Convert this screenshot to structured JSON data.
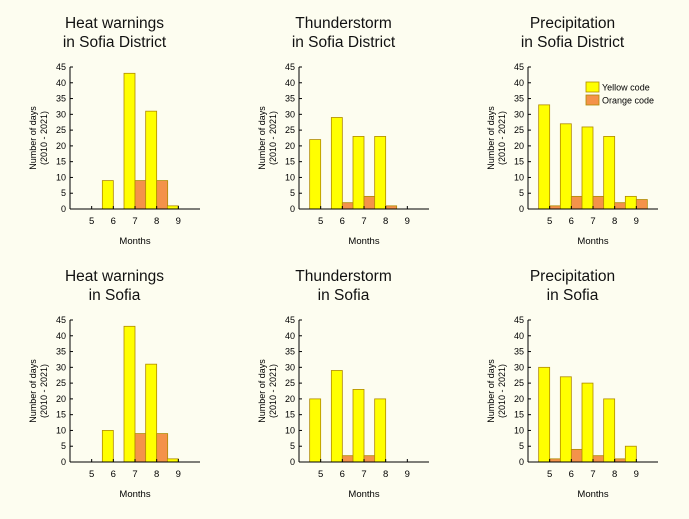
{
  "colors": {
    "yellow": "#ffff00",
    "orange": "#f4924a",
    "outline": "#b08a00",
    "axis": "#000000",
    "background": "#fdfdf0"
  },
  "legend_labels": [
    "Yellow code",
    "Orange code"
  ],
  "chart_data": [
    {
      "type": "bar",
      "title": [
        "Heat warnings",
        "in Sofia District"
      ],
      "xlabel": "Months",
      "ylabel": [
        "Number of days",
        "(2010 - 2021)"
      ],
      "ylim": [
        0,
        45
      ],
      "yticks": [
        0,
        5,
        10,
        15,
        20,
        25,
        30,
        35,
        40,
        45
      ],
      "categories": [
        "5",
        "6",
        "7",
        "8",
        "9"
      ],
      "series": [
        {
          "name": "Yellow code",
          "values": [
            0,
            9,
            43,
            31,
            1
          ]
        },
        {
          "name": "Orange code",
          "values": [
            0,
            0,
            9,
            9,
            0
          ]
        }
      ],
      "legend": false
    },
    {
      "type": "bar",
      "title": [
        "Thunderstorm",
        "in Sofia District"
      ],
      "xlabel": "Months",
      "ylabel": [
        "Number of days",
        "(2010 - 2021)"
      ],
      "ylim": [
        0,
        45
      ],
      "yticks": [
        0,
        5,
        10,
        15,
        20,
        25,
        30,
        35,
        40,
        45
      ],
      "categories": [
        "5",
        "6",
        "7",
        "8",
        "9"
      ],
      "series": [
        {
          "name": "Yellow code",
          "values": [
            22,
            29,
            23,
            23,
            0
          ]
        },
        {
          "name": "Orange code",
          "values": [
            0,
            2,
            4,
            1,
            0
          ]
        }
      ],
      "legend": false
    },
    {
      "type": "bar",
      "title": [
        "Precipitation",
        "in Sofia District"
      ],
      "xlabel": "Months",
      "ylabel": [
        "Number of days",
        "(2010 - 2021)"
      ],
      "ylim": [
        0,
        45
      ],
      "yticks": [
        0,
        5,
        10,
        15,
        20,
        25,
        30,
        35,
        40,
        45
      ],
      "categories": [
        "5",
        "6",
        "7",
        "8",
        "9"
      ],
      "series": [
        {
          "name": "Yellow code",
          "values": [
            33,
            27,
            26,
            23,
            4
          ]
        },
        {
          "name": "Orange code",
          "values": [
            1,
            4,
            4,
            2,
            3
          ]
        }
      ],
      "legend": "top-right"
    },
    {
      "type": "bar",
      "title": [
        "Heat warnings",
        "in Sofia"
      ],
      "xlabel": "Months",
      "ylabel": [
        "Number of days",
        "(2010 - 2021)"
      ],
      "ylim": [
        0,
        45
      ],
      "yticks": [
        0,
        5,
        10,
        15,
        20,
        25,
        30,
        35,
        40,
        45
      ],
      "categories": [
        "5",
        "6",
        "7",
        "8",
        "9"
      ],
      "series": [
        {
          "name": "Yellow code",
          "values": [
            0,
            10,
            43,
            31,
            1
          ]
        },
        {
          "name": "Orange code",
          "values": [
            0,
            0,
            9,
            9,
            0
          ]
        }
      ],
      "legend": false
    },
    {
      "type": "bar",
      "title": [
        "Thunderstorm",
        "in Sofia"
      ],
      "xlabel": "Months",
      "ylabel": [
        "Number of days",
        "(2010 - 2021)"
      ],
      "ylim": [
        0,
        45
      ],
      "yticks": [
        0,
        5,
        10,
        15,
        20,
        25,
        30,
        35,
        40,
        45
      ],
      "categories": [
        "5",
        "6",
        "7",
        "8",
        "9"
      ],
      "series": [
        {
          "name": "Yellow code",
          "values": [
            20,
            29,
            23,
            20,
            0
          ]
        },
        {
          "name": "Orange code",
          "values": [
            0,
            2,
            2,
            0,
            0
          ]
        }
      ],
      "legend": false
    },
    {
      "type": "bar",
      "title": [
        "Precipitation",
        "in Sofia"
      ],
      "xlabel": "Months",
      "ylabel": [
        "Number of days",
        "(2010 - 2021)"
      ],
      "ylim": [
        0,
        45
      ],
      "yticks": [
        0,
        5,
        10,
        15,
        20,
        25,
        30,
        35,
        40,
        45
      ],
      "categories": [
        "5",
        "6",
        "7",
        "8",
        "9"
      ],
      "series": [
        {
          "name": "Yellow code",
          "values": [
            30,
            27,
            25,
            20,
            5
          ]
        },
        {
          "name": "Orange code",
          "values": [
            1,
            4,
            2,
            1,
            0
          ]
        }
      ],
      "legend": false
    }
  ]
}
